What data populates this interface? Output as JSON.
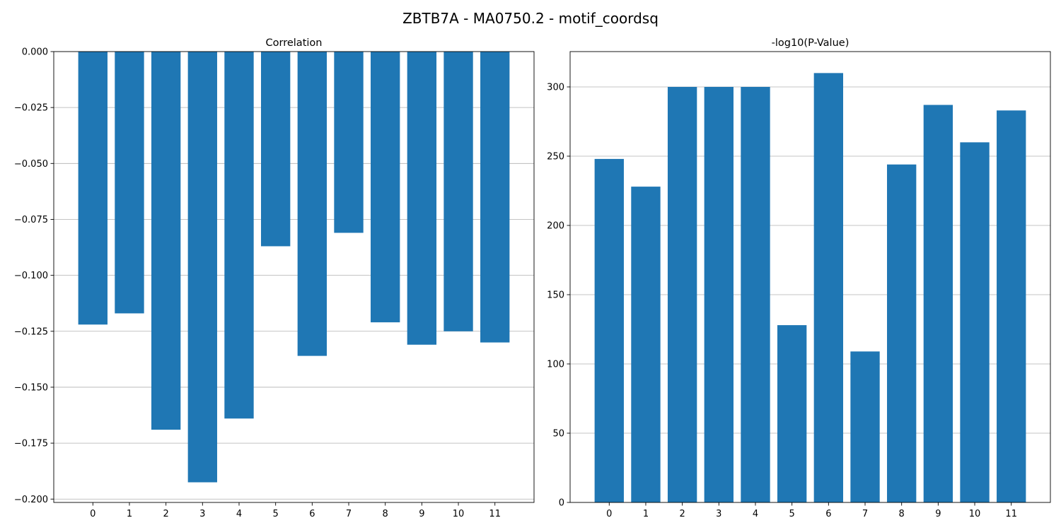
{
  "figure": {
    "title": "ZBTB7A - MA0750.2 - motif_coordsq",
    "bar_color": "#1f77b4",
    "grid_color": "#b0b0b0"
  },
  "chart_data": [
    {
      "type": "bar",
      "title": "Correlation",
      "xlabel": "",
      "ylabel": "",
      "categories": [
        "0",
        "1",
        "2",
        "3",
        "4",
        "5",
        "6",
        "7",
        "8",
        "9",
        "10",
        "11"
      ],
      "values": [
        -0.122,
        -0.117,
        -0.169,
        -0.1925,
        -0.164,
        -0.087,
        -0.136,
        -0.081,
        -0.121,
        -0.131,
        -0.125,
        -0.13
      ],
      "ylim": [
        -0.2015,
        0.0
      ],
      "yticks": [
        0.0,
        -0.025,
        -0.05,
        -0.075,
        -0.1,
        -0.125,
        -0.15,
        -0.175,
        -0.2
      ],
      "ytick_labels": [
        "0.000",
        "−0.025",
        "−0.050",
        "−0.075",
        "−0.100",
        "−0.125",
        "−0.150",
        "−0.175",
        "−0.200"
      ],
      "grid": "y"
    },
    {
      "type": "bar",
      "title": "-log10(P-Value)",
      "xlabel": "",
      "ylabel": "",
      "categories": [
        "0",
        "1",
        "2",
        "3",
        "4",
        "5",
        "6",
        "7",
        "8",
        "9",
        "10",
        "11"
      ],
      "values": [
        248,
        228,
        300,
        300,
        300,
        128,
        310,
        109,
        244,
        287,
        260,
        283
      ],
      "ylim": [
        0,
        325.5
      ],
      "yticks": [
        0,
        50,
        100,
        150,
        200,
        250,
        300
      ],
      "ytick_labels": [
        "0",
        "50",
        "100",
        "150",
        "200",
        "250",
        "300"
      ],
      "grid": "y"
    }
  ]
}
